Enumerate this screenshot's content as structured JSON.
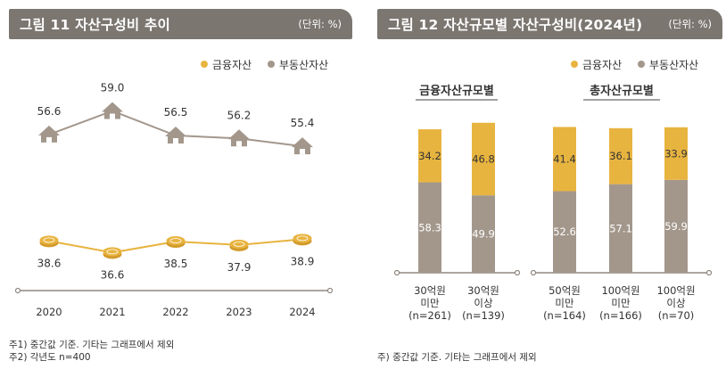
{
  "left": {
    "title": "그림 11  자산구성비 추이",
    "unit": "(단위: %)",
    "legend": [
      {
        "label": "금융자산",
        "color": "#e8b440"
      },
      {
        "label": "부동산자산",
        "color": "#a3978c"
      }
    ],
    "footnotes": [
      "주1) 중간값 기준. 기타는 그래프에서 제외",
      "주2) 각년도 n=400"
    ]
  },
  "right": {
    "title": "그림 12  자산규모별 자산구성비(2024년)",
    "unit": "(단위: %)",
    "legend": [
      {
        "label": "금융자산",
        "color": "#e8b440"
      },
      {
        "label": "부동산자산",
        "color": "#a3978c"
      }
    ],
    "group_labels": [
      "금융자산규모별",
      "총자산규모별"
    ],
    "footnote": "주) 중간값 기준. 기타는 그래프에서 제외"
  },
  "chart_data": [
    {
      "type": "line",
      "title": "자산구성비 추이",
      "unit": "%",
      "categories": [
        "2020",
        "2021",
        "2022",
        "2023",
        "2024"
      ],
      "series": [
        {
          "name": "부동산자산",
          "values": [
            56.6,
            59.0,
            56.5,
            56.2,
            55.4
          ],
          "labels": [
            "56.6",
            "59.0",
            "56.5",
            "56.2",
            "55.4"
          ],
          "color": "#a3978c"
        },
        {
          "name": "금융자산",
          "values": [
            38.6,
            36.6,
            38.5,
            37.9,
            38.9
          ],
          "labels": [
            "38.6",
            "36.6",
            "38.5",
            "37.9",
            "38.9"
          ],
          "color": "#e8b440"
        }
      ]
    },
    {
      "type": "bar",
      "stacked": true,
      "title": "자산규모별 자산구성비(2024년)",
      "unit": "%",
      "categories": [
        [
          "30억원",
          "미만",
          "(n=261)"
        ],
        [
          "30억원",
          "이상",
          "(n=139)"
        ],
        [
          "50억원",
          "미만",
          "(n=164)"
        ],
        [
          "100억원",
          "미만",
          "(n=166)"
        ],
        [
          "100억원",
          "이상",
          "(n=70)"
        ]
      ],
      "series": [
        {
          "name": "부동산자산",
          "values": [
            58.3,
            49.9,
            52.6,
            57.1,
            59.9
          ],
          "labels": [
            "58.3",
            "49.9",
            "52.6",
            "57.1",
            "59.9"
          ],
          "color": "#a3978c"
        },
        {
          "name": "금융자산",
          "values": [
            34.2,
            46.8,
            41.4,
            36.1,
            33.9
          ],
          "labels": [
            "34.2",
            "46.8",
            "41.4",
            "36.1",
            "33.9"
          ],
          "color": "#e8b440"
        }
      ]
    }
  ]
}
